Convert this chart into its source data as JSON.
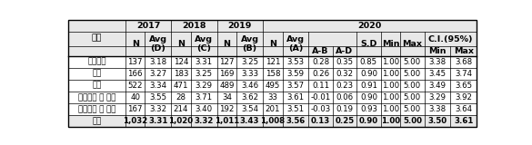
{
  "rows": [
    {
      "label": "자연과학",
      "values": [
        "137",
        "3.18",
        "124",
        "3.31",
        "127",
        "3.25",
        "121",
        "3.53",
        "0.28",
        "0.35",
        "0.85",
        "1.00",
        "5.00",
        "3.38",
        "3.68"
      ]
    },
    {
      "label": "생명",
      "values": [
        "166",
        "3.27",
        "183",
        "3.25",
        "169",
        "3.33",
        "158",
        "3.59",
        "0.26",
        "0.32",
        "0.90",
        "1.00",
        "5.00",
        "3.45",
        "3.74"
      ]
    },
    {
      "label": "공학",
      "values": [
        "522",
        "3.34",
        "471",
        "3.29",
        "489",
        "3.46",
        "495",
        "3.57",
        "0.11",
        "0.23",
        "0.91",
        "1.00",
        "5.00",
        "3.49",
        "3.65"
      ]
    },
    {
      "label": "인간과학 및 기술",
      "values": [
        "40",
        "3.55",
        "28",
        "3.71",
        "34",
        "3.62",
        "33",
        "3.61",
        "-0.01",
        "0.06",
        "0.90",
        "1.00",
        "5.00",
        "3.29",
        "3.92"
      ]
    },
    {
      "label": "사회과학 및 기타",
      "values": [
        "167",
        "3.32",
        "214",
        "3.40",
        "192",
        "3.54",
        "201",
        "3.51",
        "-0.03",
        "0.19",
        "0.93",
        "1.00",
        "5.00",
        "3.38",
        "3.64"
      ]
    },
    {
      "label": "합계",
      "values": [
        "1,032",
        "3.31",
        "1,020",
        "3.32",
        "1,011",
        "3.43",
        "1,008",
        "3.56",
        "0.13",
        "0.25",
        "0.90",
        "1.00",
        "5.00",
        "3.50",
        "3.61"
      ]
    }
  ],
  "hbg": "#e8e8e8",
  "wbg": "#ffffff",
  "bc": "#000000"
}
